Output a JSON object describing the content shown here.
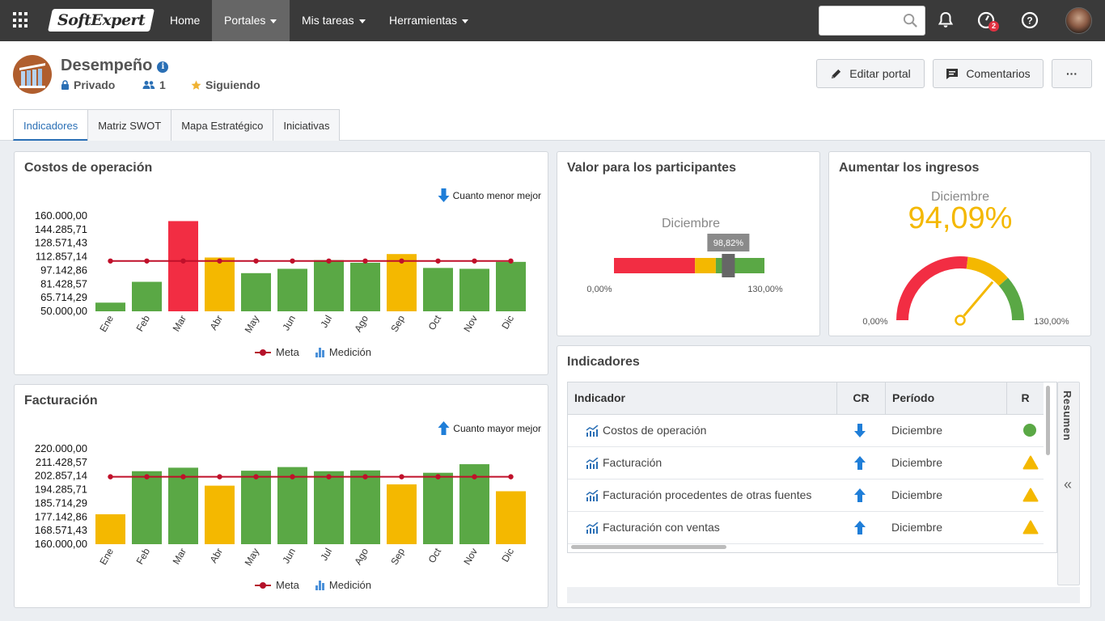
{
  "topbar": {
    "logo_text": "SoftExpert",
    "nav": [
      "Home",
      "Portales",
      "Mis tareas",
      "Herramientas"
    ],
    "active_nav": "Portales",
    "search": {
      "placeholder": "",
      "value": ""
    },
    "notifications_badge": "2"
  },
  "portal": {
    "title": "Desempeño",
    "privacy": "Privado",
    "members": "1",
    "follow": "Siguiendo",
    "buttons": {
      "edit": "Editar portal",
      "comments": "Comentarios",
      "more": "···"
    }
  },
  "tabs": [
    "Indicadores",
    "Matriz SWOT",
    "Mapa Estratégico",
    "Iniciativas"
  ],
  "active_tab": "Indicadores",
  "colors": {
    "red": "#f22d43",
    "yellow": "#f4b800",
    "green": "#5aa845",
    "meta": "#c0102a",
    "blue": "#1f7ed8"
  },
  "costos": {
    "title": "Costos de operación",
    "hint": "Cuanto menor mejor",
    "legend": {
      "meta": "Meta",
      "medicion": "Medición"
    }
  },
  "facturacion": {
    "title": "Facturación",
    "hint": "Cuanto mayor mejor",
    "legend": {
      "meta": "Meta",
      "medicion": "Medición"
    }
  },
  "chart_data": [
    {
      "type": "bar",
      "title": "Costos de operación",
      "categories": [
        "Ene",
        "Feb",
        "Mar",
        "Abr",
        "May",
        "Jun",
        "Jul",
        "Ago",
        "Sep",
        "Oct",
        "Nov",
        "Dic"
      ],
      "y_ticks": [
        "160.000,00",
        "144.285,71",
        "128.571,43",
        "112.857,14",
        "97.142,86",
        "81.428,57",
        "65.714,29",
        "50.000,00"
      ],
      "ylim": [
        50000,
        160000
      ],
      "series": [
        {
          "name": "Medición",
          "values": [
            60000,
            84000,
            154000,
            112000,
            94000,
            99000,
            109000,
            106000,
            116000,
            100000,
            99000,
            107000
          ],
          "colors": [
            "green",
            "green",
            "red",
            "yellow",
            "green",
            "green",
            "green",
            "green",
            "yellow",
            "green",
            "green",
            "green"
          ]
        },
        {
          "name": "Meta",
          "values": [
            108000,
            108000,
            108000,
            108000,
            108000,
            108000,
            108000,
            108000,
            108000,
            108000,
            108000,
            108000
          ]
        }
      ],
      "legend": "bottom"
    },
    {
      "type": "bar",
      "title": "Facturación",
      "categories": [
        "Ene",
        "Feb",
        "Mar",
        "Abr",
        "May",
        "Jun",
        "Jul",
        "Ago",
        "Sep",
        "Oct",
        "Nov",
        "Dic"
      ],
      "y_ticks": [
        "220.000,00",
        "211.428,57",
        "202.857,14",
        "194.285,71",
        "185.714,29",
        "177.142,86",
        "168.571,43",
        "160.000,00"
      ],
      "ylim": [
        160000,
        220000
      ],
      "series": [
        {
          "name": "Medición",
          "values": [
            178800,
            205900,
            208100,
            196800,
            206200,
            208500,
            205900,
            206400,
            197600,
            204900,
            210300,
            193300
          ],
          "colors": [
            "yellow",
            "green",
            "green",
            "yellow",
            "green",
            "green",
            "green",
            "green",
            "yellow",
            "green",
            "green",
            "yellow"
          ]
        },
        {
          "name": "Meta",
          "values": [
            202400,
            202400,
            202400,
            202400,
            202400,
            202400,
            202400,
            202400,
            202400,
            202400,
            202400,
            202400
          ]
        }
      ],
      "legend": "bottom"
    }
  ],
  "valor": {
    "title": "Valor para los participantes",
    "period": "Diciembre",
    "value_label": "98,82%",
    "value": 98.82,
    "min_label": "0,00%",
    "max_label": "130,00%",
    "max": 130,
    "zones": [
      {
        "to": 70,
        "color": "red"
      },
      {
        "to": 88,
        "color": "yellow"
      },
      {
        "to": 130,
        "color": "green"
      }
    ]
  },
  "ingresos": {
    "title": "Aumentar los ingresos",
    "period": "Diciembre",
    "value_label": "94,09%",
    "value": 94.09,
    "min_label": "0,00%",
    "max_label": "130,00%",
    "max": 130,
    "zones": [
      {
        "to": 70,
        "color": "red"
      },
      {
        "to": 100,
        "color": "yellow"
      },
      {
        "to": 130,
        "color": "green"
      }
    ]
  },
  "indicadores": {
    "title": "Indicadores",
    "columns": [
      "Indicador",
      "CR",
      "Período",
      "R"
    ],
    "rows": [
      {
        "name": "Costos de operación",
        "cr": "down",
        "period": "Diciembre",
        "status": "circle-green"
      },
      {
        "name": "Facturación",
        "cr": "up",
        "period": "Diciembre",
        "status": "triangle-yellow"
      },
      {
        "name": "Facturación procedentes de otras fuentes",
        "cr": "up",
        "period": "Diciembre",
        "status": "triangle-yellow"
      },
      {
        "name": "Facturación con ventas",
        "cr": "up",
        "period": "Diciembre",
        "status": "triangle-yellow"
      }
    ],
    "side_label": "Resumen"
  }
}
